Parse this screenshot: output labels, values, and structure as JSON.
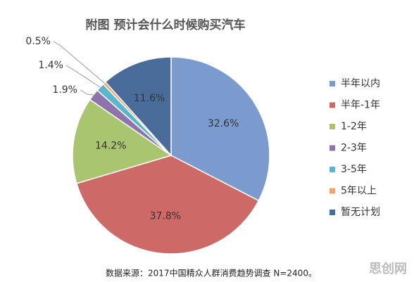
{
  "chart_data": {
    "type": "pie",
    "title": "附图 预计会什么时候购买汽车",
    "categories": [
      "半年以内",
      "半年-1年",
      "1-2年",
      "2-3年",
      "3-5年",
      "5年以上",
      "暂无计划"
    ],
    "values": [
      32.6,
      37.8,
      14.2,
      1.9,
      1.4,
      0.5,
      11.6
    ],
    "value_labels": [
      "32.6%",
      "37.8%",
      "14.2%",
      "1.9%",
      "1.4%",
      "0.5%",
      "11.6%"
    ],
    "colors": [
      "#7b9bcf",
      "#cd6967",
      "#a9c56f",
      "#8e74ad",
      "#5bb6cc",
      "#f4a46a",
      "#4a6c9b"
    ],
    "legend": "right",
    "source": "数据来源：2017中国精众人群消费趋势调查 N=2400。",
    "watermark": "思创网"
  }
}
